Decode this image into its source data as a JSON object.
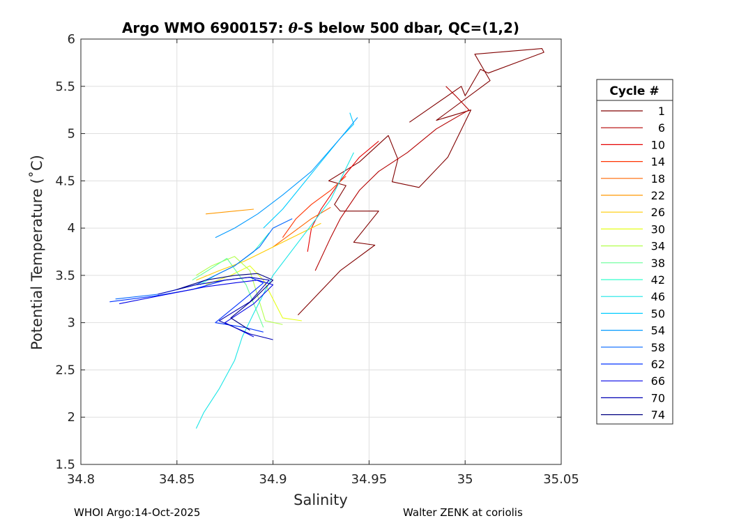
{
  "chart_data": {
    "type": "line",
    "title": "Argo WMO 6900157: θ-S below 500 dbar,  QC=(1,2)",
    "title_parts": {
      "prefix": "Argo WMO 6900157: ",
      "theta": "θ",
      "suffix": "-S below 500 dbar,  QC=(1,2)"
    },
    "xlabel": "Salinity",
    "ylabel": "Potential Temperature (˚C)",
    "xlim": [
      34.8,
      35.05
    ],
    "ylim": [
      1.5,
      6
    ],
    "xticks": [
      "34.8",
      "34.85",
      "34.9",
      "34.95",
      "35",
      "35.05"
    ],
    "xtick_values": [
      34.8,
      34.85,
      34.9,
      34.95,
      35.0,
      35.05
    ],
    "yticks": [
      "1.5",
      "2",
      "2.5",
      "3",
      "3.5",
      "4",
      "4.5",
      "5",
      "5.5",
      "6"
    ],
    "ytick_values": [
      1.5,
      2,
      2.5,
      3,
      3.5,
      4,
      4.5,
      5,
      5.5,
      6
    ],
    "grid": true,
    "legend": {
      "title": "Cycle #",
      "placement": "right-outside",
      "entries": [
        {
          "label": "1",
          "color": "#800000"
        },
        {
          "label": "6",
          "color": "#b30000"
        },
        {
          "label": "10",
          "color": "#e60000"
        },
        {
          "label": "14",
          "color": "#ff3300"
        },
        {
          "label": "18",
          "color": "#ff6600"
        },
        {
          "label": "22",
          "color": "#ff9900"
        },
        {
          "label": "26",
          "color": "#ffcc00"
        },
        {
          "label": "30",
          "color": "#e6ff1a"
        },
        {
          "label": "34",
          "color": "#b3ff4d"
        },
        {
          "label": "38",
          "color": "#66ff99"
        },
        {
          "label": "42",
          "color": "#33ffcc"
        },
        {
          "label": "46",
          "color": "#1ae6e6"
        },
        {
          "label": "50",
          "color": "#00ccff"
        },
        {
          "label": "54",
          "color": "#0099ff"
        },
        {
          "label": "58",
          "color": "#0066ff"
        },
        {
          "label": "62",
          "color": "#0033ff"
        },
        {
          "label": "66",
          "color": "#0000e6"
        },
        {
          "label": "70",
          "color": "#0000b3"
        },
        {
          "label": "74",
          "color": "#000080"
        }
      ]
    },
    "series": [
      {
        "name": "1",
        "color": "#800000",
        "x": [
          34.913,
          34.935,
          34.953,
          34.942,
          34.955,
          34.935,
          34.932,
          34.938,
          34.929,
          34.945,
          34.96,
          34.965,
          34.962,
          34.976,
          34.991,
          35.003,
          34.985,
          35.013,
          35.005,
          35.04,
          35.041,
          35.012,
          35.008,
          35.0,
          34.998,
          34.971
        ],
        "y": [
          3.08,
          3.55,
          3.82,
          3.85,
          4.18,
          4.18,
          4.25,
          4.45,
          4.5,
          4.7,
          4.98,
          4.73,
          4.49,
          4.43,
          4.75,
          5.25,
          5.14,
          5.56,
          5.84,
          5.9,
          5.86,
          5.64,
          5.68,
          5.4,
          5.5,
          5.12
        ]
      },
      {
        "name": "6",
        "color": "#b30000",
        "x": [
          34.922,
          34.93,
          34.935,
          34.945,
          34.955,
          34.97,
          34.985,
          35.002,
          34.995,
          34.99
        ],
        "y": [
          3.55,
          3.9,
          4.1,
          4.4,
          4.6,
          4.8,
          5.05,
          5.25,
          5.4,
          5.5
        ]
      },
      {
        "name": "10",
        "color": "#e60000",
        "x": [
          34.918,
          34.92,
          34.925,
          34.935,
          34.945,
          34.955
        ],
        "y": [
          3.75,
          4.0,
          4.2,
          4.5,
          4.75,
          4.92
        ]
      },
      {
        "name": "14",
        "color": "#ff3300",
        "x": [
          34.905,
          34.912,
          34.92,
          34.93,
          34.938
        ],
        "y": [
          3.9,
          4.1,
          4.25,
          4.4,
          4.55
        ]
      },
      {
        "name": "18",
        "color": "#ff6600",
        "x": [
          34.9,
          34.91,
          34.92,
          34.93
        ],
        "y": [
          3.8,
          3.95,
          4.1,
          4.22
        ]
      },
      {
        "name": "22",
        "color": "#ff9900",
        "x": [
          34.865,
          34.88,
          34.89
        ],
        "y": [
          4.15,
          4.18,
          4.2
        ]
      },
      {
        "name": "26",
        "color": "#ffcc00",
        "x": [
          34.86,
          34.872,
          34.885,
          34.892,
          34.905,
          34.925
        ],
        "y": [
          3.45,
          3.55,
          3.65,
          3.72,
          3.85,
          4.05
        ]
      },
      {
        "name": "30",
        "color": "#e6ff1a",
        "x": [
          34.865,
          34.878,
          34.888,
          34.895,
          34.905,
          34.915
        ],
        "y": [
          3.4,
          3.5,
          3.6,
          3.45,
          3.05,
          3.02
        ]
      },
      {
        "name": "34",
        "color": "#b3ff4d",
        "x": [
          34.86,
          34.868,
          34.88,
          34.888,
          34.896,
          34.905
        ],
        "y": [
          3.5,
          3.6,
          3.7,
          3.55,
          3.02,
          2.98
        ]
      },
      {
        "name": "38",
        "color": "#66ff99",
        "x": [
          34.858,
          34.866,
          34.876,
          34.886,
          34.895
        ],
        "y": [
          3.45,
          3.55,
          3.68,
          3.4,
          2.95
        ]
      },
      {
        "name": "42",
        "color": "#33ffcc",
        "x": [
          34.862,
          34.87,
          34.88,
          34.89,
          34.898
        ],
        "y": [
          3.4,
          3.5,
          3.6,
          3.75,
          3.95
        ]
      },
      {
        "name": "46",
        "color": "#1ae6e6",
        "x": [
          34.86,
          34.864,
          34.872,
          34.88,
          34.884,
          34.89,
          34.9,
          34.915,
          34.93,
          34.942
        ],
        "y": [
          1.88,
          2.05,
          2.3,
          2.6,
          2.85,
          3.1,
          3.5,
          3.9,
          4.3,
          4.8
        ]
      },
      {
        "name": "50",
        "color": "#00ccff",
        "x": [
          34.895,
          34.905,
          34.915,
          34.925,
          34.935,
          34.942,
          34.94
        ],
        "y": [
          4.0,
          4.2,
          4.45,
          4.7,
          4.95,
          5.1,
          5.22
        ]
      },
      {
        "name": "54",
        "color": "#0099ff",
        "x": [
          34.87,
          34.88,
          34.892,
          34.905,
          34.92,
          34.935,
          34.944
        ],
        "y": [
          3.9,
          4.0,
          4.15,
          4.35,
          4.6,
          4.95,
          5.17
        ]
      },
      {
        "name": "58",
        "color": "#0066ff",
        "x": [
          34.818,
          34.84,
          34.86,
          34.88,
          34.893,
          34.9,
          34.91
        ],
        "y": [
          3.25,
          3.3,
          3.4,
          3.6,
          3.8,
          4.0,
          4.1
        ]
      },
      {
        "name": "62",
        "color": "#0033ff",
        "x": [
          34.815,
          34.838,
          34.858,
          34.875,
          34.888,
          34.895,
          34.885,
          34.87,
          34.885,
          34.895
        ],
        "y": [
          3.22,
          3.28,
          3.35,
          3.45,
          3.48,
          3.42,
          3.25,
          3.0,
          2.95,
          2.9
        ]
      },
      {
        "name": "66",
        "color": "#0000e6",
        "x": [
          34.82,
          34.845,
          34.865,
          34.88,
          34.892,
          34.9,
          34.89,
          34.875,
          34.89
        ],
        "y": [
          3.2,
          3.3,
          3.38,
          3.42,
          3.45,
          3.4,
          3.2,
          3.0,
          2.85
        ]
      },
      {
        "name": "70",
        "color": "#0000b3",
        "x": [
          34.84,
          34.86,
          34.875,
          34.888,
          34.898,
          34.888,
          34.872,
          34.888,
          34.9
        ],
        "y": [
          3.3,
          3.4,
          3.45,
          3.48,
          3.45,
          3.22,
          3.02,
          2.88,
          2.82
        ]
      },
      {
        "name": "74",
        "color": "#000080",
        "x": [
          34.85,
          34.865,
          34.88,
          34.892,
          34.9,
          34.89,
          34.878,
          34.888
        ],
        "y": [
          3.35,
          3.45,
          3.5,
          3.52,
          3.45,
          3.25,
          3.05,
          2.92
        ]
      }
    ]
  },
  "footer": {
    "left": "WHOI Argo:14-Oct-2025",
    "right": "Walter ZENK at coriolis"
  }
}
